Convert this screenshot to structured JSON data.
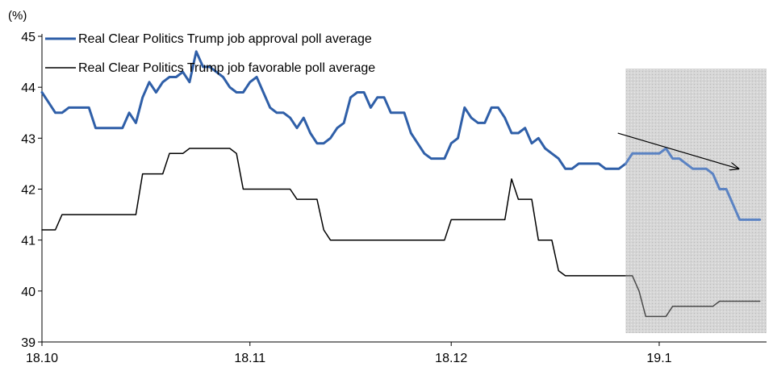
{
  "chart_data": {
    "type": "line",
    "unit_label": "(%)",
    "title": "",
    "xlabel": "",
    "ylabel": "",
    "ylim": [
      39,
      45
    ],
    "yticks": [
      "45",
      "44",
      "43",
      "42",
      "41",
      "40",
      "39"
    ],
    "xticks": [
      "18.10",
      "18.11",
      "18.12",
      "19.1"
    ],
    "x_start": "2018-10-01",
    "x_end": "2019-01-17",
    "grid": false,
    "highlight_region": {
      "from": "2018-12-27",
      "to": "2019-01-17"
    },
    "trend_arrow": {
      "from": [
        "2018-12-28",
        43.1
      ],
      "to": [
        "2019-01-15",
        42.4
      ]
    },
    "legend_position": "top-left",
    "series": [
      {
        "name": "Real Clear Politics Trump job approval poll average",
        "color": "#2f5fa8",
        "width": 3,
        "points": [
          [
            "2018-10-01",
            43.9
          ],
          [
            "2018-10-02",
            43.7
          ],
          [
            "2018-10-03",
            43.5
          ],
          [
            "2018-10-04",
            43.5
          ],
          [
            "2018-10-05",
            43.6
          ],
          [
            "2018-10-06",
            43.6
          ],
          [
            "2018-10-07",
            43.6
          ],
          [
            "2018-10-08",
            43.6
          ],
          [
            "2018-10-09",
            43.2
          ],
          [
            "2018-10-10",
            43.2
          ],
          [
            "2018-10-11",
            43.2
          ],
          [
            "2018-10-12",
            43.2
          ],
          [
            "2018-10-13",
            43.2
          ],
          [
            "2018-10-14",
            43.5
          ],
          [
            "2018-10-15",
            43.3
          ],
          [
            "2018-10-16",
            43.8
          ],
          [
            "2018-10-17",
            44.1
          ],
          [
            "2018-10-18",
            43.9
          ],
          [
            "2018-10-19",
            44.1
          ],
          [
            "2018-10-20",
            44.2
          ],
          [
            "2018-10-21",
            44.2
          ],
          [
            "2018-10-22",
            44.3
          ],
          [
            "2018-10-23",
            44.1
          ],
          [
            "2018-10-24",
            44.7
          ],
          [
            "2018-10-25",
            44.4
          ],
          [
            "2018-10-26",
            44.4
          ],
          [
            "2018-10-27",
            44.3
          ],
          [
            "2018-10-28",
            44.2
          ],
          [
            "2018-10-29",
            44.0
          ],
          [
            "2018-10-30",
            43.9
          ],
          [
            "2018-10-31",
            43.9
          ],
          [
            "2018-11-01",
            44.1
          ],
          [
            "2018-11-02",
            44.2
          ],
          [
            "2018-11-03",
            43.9
          ],
          [
            "2018-11-04",
            43.6
          ],
          [
            "2018-11-05",
            43.5
          ],
          [
            "2018-11-06",
            43.5
          ],
          [
            "2018-11-07",
            43.4
          ],
          [
            "2018-11-08",
            43.2
          ],
          [
            "2018-11-09",
            43.4
          ],
          [
            "2018-11-10",
            43.1
          ],
          [
            "2018-11-11",
            42.9
          ],
          [
            "2018-11-12",
            42.9
          ],
          [
            "2018-11-13",
            43.0
          ],
          [
            "2018-11-14",
            43.2
          ],
          [
            "2018-11-15",
            43.3
          ],
          [
            "2018-11-16",
            43.8
          ],
          [
            "2018-11-17",
            43.9
          ],
          [
            "2018-11-18",
            43.9
          ],
          [
            "2018-11-19",
            43.6
          ],
          [
            "2018-11-20",
            43.8
          ],
          [
            "2018-11-21",
            43.8
          ],
          [
            "2018-11-22",
            43.5
          ],
          [
            "2018-11-23",
            43.5
          ],
          [
            "2018-11-24",
            43.5
          ],
          [
            "2018-11-25",
            43.1
          ],
          [
            "2018-11-26",
            42.9
          ],
          [
            "2018-11-27",
            42.7
          ],
          [
            "2018-11-28",
            42.6
          ],
          [
            "2018-11-29",
            42.6
          ],
          [
            "2018-11-30",
            42.6
          ],
          [
            "2018-12-01",
            42.9
          ],
          [
            "2018-12-02",
            43.0
          ],
          [
            "2018-12-03",
            43.6
          ],
          [
            "2018-12-04",
            43.4
          ],
          [
            "2018-12-05",
            43.3
          ],
          [
            "2018-12-06",
            43.3
          ],
          [
            "2018-12-07",
            43.6
          ],
          [
            "2018-12-08",
            43.6
          ],
          [
            "2018-12-09",
            43.4
          ],
          [
            "2018-12-10",
            43.1
          ],
          [
            "2018-12-11",
            43.1
          ],
          [
            "2018-12-12",
            43.2
          ],
          [
            "2018-12-13",
            42.9
          ],
          [
            "2018-12-14",
            43.0
          ],
          [
            "2018-12-15",
            42.8
          ],
          [
            "2018-12-16",
            42.7
          ],
          [
            "2018-12-17",
            42.6
          ],
          [
            "2018-12-18",
            42.4
          ],
          [
            "2018-12-19",
            42.4
          ],
          [
            "2018-12-20",
            42.5
          ],
          [
            "2018-12-21",
            42.5
          ],
          [
            "2018-12-22",
            42.5
          ],
          [
            "2018-12-23",
            42.5
          ],
          [
            "2018-12-24",
            42.4
          ],
          [
            "2018-12-25",
            42.4
          ],
          [
            "2018-12-26",
            42.4
          ],
          [
            "2018-12-27",
            42.5
          ],
          [
            "2018-12-28",
            42.7
          ],
          [
            "2018-12-29",
            42.7
          ],
          [
            "2018-12-30",
            42.7
          ],
          [
            "2018-12-31",
            42.7
          ],
          [
            "2019-01-01",
            42.7
          ],
          [
            "2019-01-02",
            42.8
          ],
          [
            "2019-01-03",
            42.6
          ],
          [
            "2019-01-04",
            42.6
          ],
          [
            "2019-01-05",
            42.5
          ],
          [
            "2019-01-06",
            42.4
          ],
          [
            "2019-01-07",
            42.4
          ],
          [
            "2019-01-08",
            42.4
          ],
          [
            "2019-01-09",
            42.3
          ],
          [
            "2019-01-10",
            42.0
          ],
          [
            "2019-01-11",
            42.0
          ],
          [
            "2019-01-12",
            41.7
          ],
          [
            "2019-01-13",
            41.4
          ],
          [
            "2019-01-14",
            41.4
          ],
          [
            "2019-01-15",
            41.4
          ],
          [
            "2019-01-16",
            41.4
          ]
        ]
      },
      {
        "name": "Real Clear Politics Trump job favorable poll average",
        "color": "#000000",
        "width": 1.5,
        "points": [
          [
            "2018-10-01",
            41.2
          ],
          [
            "2018-10-03",
            41.2
          ],
          [
            "2018-10-04",
            41.5
          ],
          [
            "2018-10-15",
            41.5
          ],
          [
            "2018-10-16",
            42.3
          ],
          [
            "2018-10-19",
            42.3
          ],
          [
            "2018-10-20",
            42.7
          ],
          [
            "2018-10-22",
            42.7
          ],
          [
            "2018-10-23",
            42.8
          ],
          [
            "2018-10-29",
            42.8
          ],
          [
            "2018-10-30",
            42.7
          ],
          [
            "2018-10-31",
            42.0
          ],
          [
            "2018-11-07",
            42.0
          ],
          [
            "2018-11-08",
            41.8
          ],
          [
            "2018-11-11",
            41.8
          ],
          [
            "2018-11-12",
            41.2
          ],
          [
            "2018-11-13",
            41.0
          ],
          [
            "2018-11-30",
            41.0
          ],
          [
            "2018-12-01",
            41.4
          ],
          [
            "2018-12-09",
            41.4
          ],
          [
            "2018-12-10",
            42.2
          ],
          [
            "2018-12-11",
            41.8
          ],
          [
            "2018-12-12",
            41.8
          ],
          [
            "2018-12-13",
            41.8
          ],
          [
            "2018-12-14",
            41.0
          ],
          [
            "2018-12-16",
            41.0
          ],
          [
            "2018-12-17",
            40.4
          ],
          [
            "2018-12-18",
            40.3
          ],
          [
            "2018-12-27",
            40.3
          ],
          [
            "2018-12-28",
            40.3
          ],
          [
            "2018-12-29",
            40.0
          ],
          [
            "2018-12-30",
            39.5
          ],
          [
            "2019-01-02",
            39.5
          ],
          [
            "2019-01-03",
            39.7
          ],
          [
            "2019-01-09",
            39.7
          ],
          [
            "2019-01-10",
            39.8
          ],
          [
            "2019-01-16",
            39.8
          ]
        ]
      }
    ]
  }
}
